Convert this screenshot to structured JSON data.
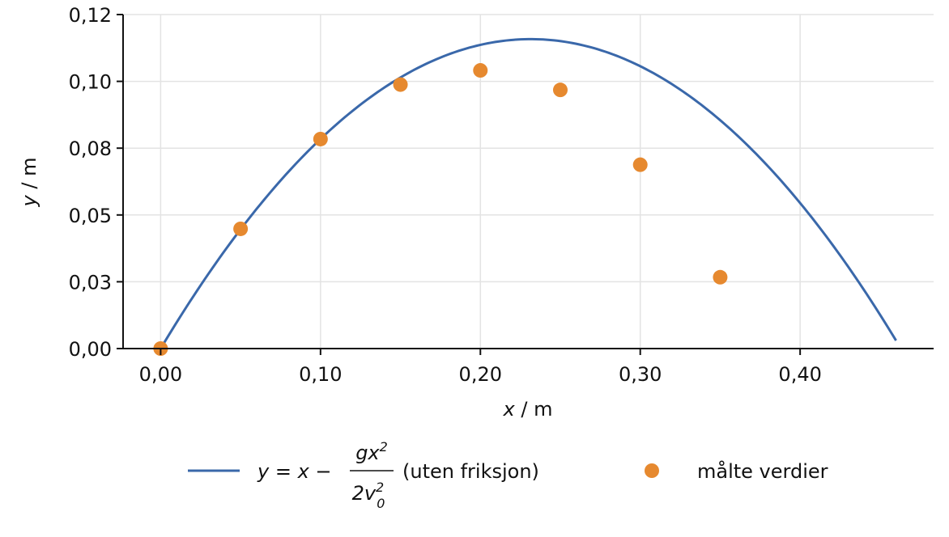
{
  "chart_data": {
    "type": "scatter",
    "title": "",
    "xlabel": {
      "var": "x",
      "unit": " / m"
    },
    "ylabel": {
      "var": "y",
      "unit": " / m"
    },
    "xlim": [
      -0.0235,
      0.4835
    ],
    "ylim": [
      0.0,
      0.125
    ],
    "x_ticks": [
      0.0,
      0.1,
      0.2,
      0.3,
      0.4
    ],
    "x_tick_labels": [
      "0,00",
      "0,10",
      "0,20",
      "0,30",
      "0,40"
    ],
    "y_ticks": [
      0.0,
      0.025,
      0.05,
      0.075,
      0.1,
      0.125
    ],
    "y_tick_labels": [
      "0,00",
      "0,03",
      "0,05",
      "0,08",
      "0,10",
      "0,12"
    ],
    "grid": true,
    "legend_position": "bottom-outside",
    "series": [
      {
        "name": "y = x − gx²/(2v₀²) (uten friksjon)",
        "kind": "line",
        "color": "#3a68aa",
        "x": [
          0.0,
          0.05,
          0.1,
          0.15,
          0.2,
          0.23,
          0.25,
          0.3,
          0.35,
          0.4,
          0.46
        ],
        "y": [
          0.0,
          0.0446,
          0.0783,
          0.1011,
          0.1129,
          0.115,
          0.1141,
          0.1058,
          0.0871,
          0.058,
          0.0
        ]
      },
      {
        "name": "målte verdier",
        "kind": "scatter",
        "color": "#e6892f",
        "x": [
          0.0,
          0.05,
          0.1,
          0.15,
          0.2,
          0.25,
          0.3,
          0.35
        ],
        "y": [
          0.0,
          0.0448,
          0.0784,
          0.0988,
          0.1041,
          0.0968,
          0.0688,
          0.0267
        ]
      }
    ],
    "legend": {
      "line_label_lhs": "y = x −",
      "line_label_num": "gx",
      "line_label_num_sup": "2",
      "line_label_den": "2v",
      "line_label_den_sub": "0",
      "line_label_den_sup": "2",
      "line_label_rhs": "(uten friksjon)",
      "scatter_label": "målte verdier"
    }
  }
}
